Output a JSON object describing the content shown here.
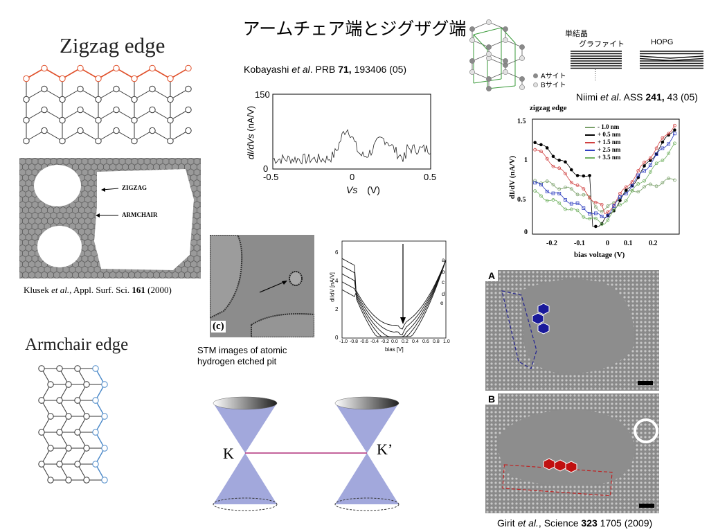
{
  "slide": {
    "title": "アームチェア端とジグザグ端"
  },
  "zigzag": {
    "heading": "Zigzag edge",
    "label_zigzag": "ZIGZAG",
    "label_armchair": "ARMCHAIR",
    "citation_author": "Klusek",
    "citation_etal": "et al.",
    "citation_rest": ", Appl. Surf. Sci.",
    "citation_vol": "161",
    "citation_year": "(2000)"
  },
  "armchair": {
    "heading": "Armchair edge"
  },
  "kobayashi": {
    "citation_author": "Kobayashi",
    "citation_etal": "et al",
    "citation_journal": ". PRB",
    "citation_vol": "71,",
    "citation_rest": "193406 (05)",
    "ylabel_main": "dI/dVs",
    "ylabel_unit": "(nA/V)",
    "xlabel_main": "Vs",
    "xlabel_unit": "(V)",
    "ytick_top": "150",
    "ytick_bottom": "0",
    "xticks": [
      "-0.5",
      "0",
      "0.5"
    ]
  },
  "stm": {
    "panel_label": "(c)",
    "caption_line1": "STM images of atomic",
    "caption_line2": "hydrogen etched pit"
  },
  "spectra": {
    "ylabel": "dI/dV [nA/V]",
    "xlabel": "bias [V]",
    "yticks": [
      "0",
      "2",
      "4",
      "6"
    ],
    "xticks": [
      "-1.0",
      "-0.8",
      "-0.6",
      "-0.4",
      "-0.2",
      "0.0",
      "0.2",
      "0.4",
      "0.6",
      "0.8",
      "1.0"
    ],
    "curve_labels": [
      "a",
      "b",
      "c",
      "d",
      "e"
    ]
  },
  "cones": {
    "label_k": "K",
    "label_kprime": "K’"
  },
  "niimi": {
    "label_single_crystal": "単結晶",
    "label_graphite": "グラファイト",
    "label_hopg": "HOPG",
    "legend_a_site": "Aサイト",
    "legend_b_site": "Bサイト",
    "citation_author": "Niimi",
    "citation_etal": "et al",
    "citation_journal": ". ASS",
    "citation_vol": "241,",
    "citation_rest": "43 (05)",
    "plot_title": "zigzag edge",
    "ylabel": "dI/dV (nA/V)",
    "xlabel": "bias voltage (V)",
    "yticks": [
      "0",
      "0.5",
      "1",
      "1.5"
    ],
    "xticks": [
      "-0.2",
      "-0.1",
      "0",
      "0.1",
      "0.2"
    ],
    "legend": [
      "- 1.0 nm",
      "+ 0.5 nm",
      "+ 1.5 nm",
      "+ 2.5 nm",
      "+ 3.5 nm"
    ],
    "series_colors": [
      "#7aa06a",
      "#000000",
      "#d04040",
      "#3040c0",
      "#70b060"
    ]
  },
  "girit": {
    "panel_a": "A",
    "panel_b": "B",
    "citation_author": "Girit",
    "citation_etal": "et al.",
    "citation_journal": ", Science",
    "citation_vol": "323",
    "citation_rest": "1705 (2009)"
  },
  "colors": {
    "zigzag_edge": "#e0502a",
    "armchair_edge": "#4a88c8",
    "cone_fill": "#a2a8dc",
    "kk_line": "#b0307a",
    "hex_blue": "#1a1a9a",
    "hex_red": "#c01010"
  }
}
